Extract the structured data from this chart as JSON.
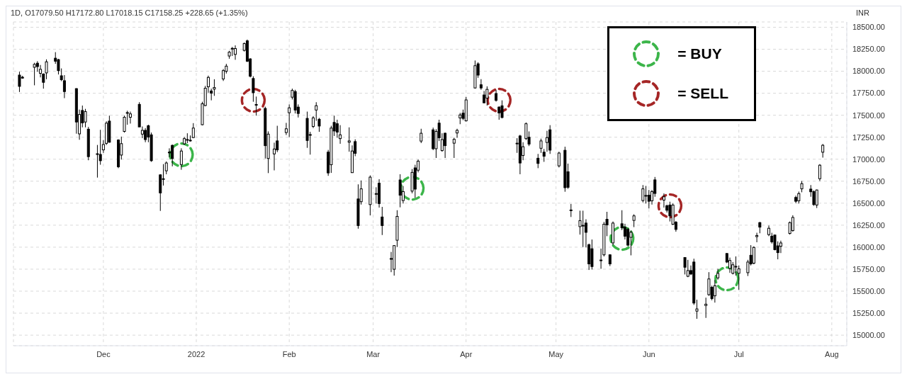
{
  "chart_data": {
    "type": "candlestick",
    "title": "1D, O17079.50 H17172.80 L17018.15 C17158.25 +228.65 (+1.35%)",
    "ylabel": "INR",
    "color": "#000000",
    "x": [
      "2021-11-03",
      "2021-11-04",
      "2021-11-08",
      "2021-11-09",
      "2021-11-10",
      "2021-11-11",
      "2021-11-12",
      "2021-11-15",
      "2021-11-16",
      "2021-11-17",
      "2021-11-18",
      "2021-11-22",
      "2021-11-23",
      "2021-11-24",
      "2021-11-25",
      "2021-11-26",
      "2021-11-29",
      "2021-11-30",
      "2021-12-01",
      "2021-12-02",
      "2021-12-03",
      "2021-12-06",
      "2021-12-07",
      "2021-12-08",
      "2021-12-09",
      "2021-12-10",
      "2021-12-13",
      "2021-12-14",
      "2021-12-15",
      "2021-12-16",
      "2021-12-17",
      "2021-12-20",
      "2021-12-21",
      "2021-12-22",
      "2021-12-23",
      "2021-12-24",
      "2021-12-27",
      "2021-12-28",
      "2021-12-29",
      "2021-12-30",
      "2021-12-31",
      "2022-01-03",
      "2022-01-04",
      "2022-01-05",
      "2022-01-06",
      "2022-01-07",
      "2022-01-10",
      "2022-01-11",
      "2022-01-12",
      "2022-01-13",
      "2022-01-14",
      "2022-01-17",
      "2022-01-18",
      "2022-01-19",
      "2022-01-20",
      "2022-01-21",
      "2022-01-24",
      "2022-01-25",
      "2022-01-27",
      "2022-01-28",
      "2022-01-31",
      "2022-02-01",
      "2022-02-02",
      "2022-02-03",
      "2022-02-04",
      "2022-02-07",
      "2022-02-08",
      "2022-02-09",
      "2022-02-10",
      "2022-02-11",
      "2022-02-14",
      "2022-02-15",
      "2022-02-16",
      "2022-02-17",
      "2022-02-18",
      "2022-02-21",
      "2022-02-22",
      "2022-02-23",
      "2022-02-24",
      "2022-02-25",
      "2022-02-28",
      "2022-03-02",
      "2022-03-03",
      "2022-03-04",
      "2022-03-07",
      "2022-03-08",
      "2022-03-09",
      "2022-03-10",
      "2022-03-11",
      "2022-03-14",
      "2022-03-15",
      "2022-03-16",
      "2022-03-17",
      "2022-03-21",
      "2022-03-22",
      "2022-03-23",
      "2022-03-24",
      "2022-03-25",
      "2022-03-28",
      "2022-03-29",
      "2022-03-30",
      "2022-03-31",
      "2022-04-01",
      "2022-04-04",
      "2022-04-05",
      "2022-04-06",
      "2022-04-07",
      "2022-04-08",
      "2022-04-11",
      "2022-04-12",
      "2022-04-13",
      "2022-04-18",
      "2022-04-19",
      "2022-04-20",
      "2022-04-21",
      "2022-04-22",
      "2022-04-25",
      "2022-04-26",
      "2022-04-27",
      "2022-04-28",
      "2022-04-29",
      "2022-05-02",
      "2022-05-04",
      "2022-05-05",
      "2022-05-06",
      "2022-05-09",
      "2022-05-10",
      "2022-05-11",
      "2022-05-12",
      "2022-05-13",
      "2022-05-16",
      "2022-05-17",
      "2022-05-18",
      "2022-05-19",
      "2022-05-20",
      "2022-05-23",
      "2022-05-24",
      "2022-05-25",
      "2022-05-26",
      "2022-05-27",
      "2022-05-30",
      "2022-05-31",
      "2022-06-01",
      "2022-06-02",
      "2022-06-03",
      "2022-06-06",
      "2022-06-07",
      "2022-06-08",
      "2022-06-09",
      "2022-06-10",
      "2022-06-13",
      "2022-06-14",
      "2022-06-15",
      "2022-06-16",
      "2022-06-17",
      "2022-06-20",
      "2022-06-21",
      "2022-06-22",
      "2022-06-23",
      "2022-06-24",
      "2022-06-27",
      "2022-06-28",
      "2022-06-29",
      "2022-06-30",
      "2022-07-01",
      "2022-07-04",
      "2022-07-05",
      "2022-07-06",
      "2022-07-07",
      "2022-07-08",
      "2022-07-11",
      "2022-07-12",
      "2022-07-13",
      "2022-07-14",
      "2022-07-15",
      "2022-07-18",
      "2022-07-19",
      "2022-07-20",
      "2022-07-21",
      "2022-07-22",
      "2022-07-25",
      "2022-07-26",
      "2022-07-27",
      "2022-07-28",
      "2022-07-29"
    ],
    "ohlc": [
      [
        17956,
        17994,
        17764,
        17828
      ],
      [
        17932,
        17948,
        17915,
        17922
      ],
      [
        18045,
        18096,
        17840,
        18078
      ],
      [
        18091,
        18114,
        17994,
        18053
      ],
      [
        17976,
        18071,
        17930,
        18022
      ],
      [
        17968,
        17976,
        17802,
        17874
      ],
      [
        17981,
        18135,
        17909,
        18107
      ],
      [
        18148,
        18217,
        18084,
        18114
      ],
      [
        18132,
        18140,
        17963,
        18007
      ],
      [
        17948,
        18032,
        17887,
        17904
      ],
      [
        17892,
        17956,
        17694,
        17769
      ],
      [
        17802,
        17807,
        17290,
        17423
      ],
      [
        17288,
        17564,
        17221,
        17508
      ],
      [
        17554,
        17610,
        17362,
        17413
      ],
      [
        17423,
        17572,
        17362,
        17541
      ],
      [
        17341,
        17367,
        16988,
        17029
      ],
      [
        17062,
        17162,
        16791,
        17054
      ],
      [
        17054,
        17334,
        16937,
        16983
      ],
      [
        17106,
        17218,
        17072,
        17167
      ],
      [
        17180,
        17431,
        17162,
        17410
      ],
      [
        17433,
        17495,
        17188,
        17193
      ],
      [
        17218,
        17226,
        16898,
        16914
      ],
      [
        17047,
        17257,
        16996,
        17177
      ],
      [
        17316,
        17495,
        17303,
        17477
      ],
      [
        17528,
        17551,
        17392,
        17530
      ],
      [
        17477,
        17541,
        17405,
        17515
      ],
      [
        17623,
        17648,
        17367,
        17367
      ],
      [
        17285,
        17372,
        17239,
        17328
      ],
      [
        17328,
        17354,
        17193,
        17223
      ],
      [
        17380,
        17392,
        17193,
        17252
      ],
      [
        17277,
        17303,
        16970,
        16983
      ],
      [
        16822,
        16829,
        16412,
        16617
      ],
      [
        16773,
        16944,
        16701,
        16778
      ],
      [
        16868,
        16975,
        16829,
        16957
      ],
      [
        17080,
        17124,
        17021,
        17077
      ],
      [
        17157,
        17167,
        16919,
        17008
      ],
      [
        16939,
        17124,
        16880,
        17093
      ],
      [
        17175,
        17252,
        17162,
        17234
      ],
      [
        17220,
        17295,
        17183,
        17224
      ],
      [
        17213,
        17270,
        17200,
        17216
      ],
      [
        17246,
        17410,
        17239,
        17354
      ],
      [
        17392,
        17653,
        17385,
        17630
      ],
      [
        17610,
        17833,
        17602,
        17807
      ],
      [
        17823,
        17950,
        17756,
        17930
      ],
      [
        17776,
        17802,
        17669,
        17751
      ],
      [
        17797,
        17909,
        17720,
        17815
      ],
      [
        17912,
        18025,
        17889,
        18007
      ],
      [
        17999,
        18084,
        17974,
        18058
      ],
      [
        18173,
        18232,
        18142,
        18217
      ],
      [
        18256,
        18276,
        18173,
        18260
      ],
      [
        18191,
        18294,
        18130,
        18258
      ],
      [
        18237,
        18327,
        18224,
        18314
      ],
      [
        18345,
        18360,
        18104,
        18114
      ],
      [
        18140,
        18148,
        17930,
        17943
      ],
      [
        17917,
        17943,
        17653,
        17756
      ],
      [
        17617,
        17712,
        17495,
        17622
      ],
      [
        17577,
        17597,
        17008,
        17154
      ],
      [
        17008,
        17316,
        16842,
        17285
      ],
      [
        17060,
        17188,
        16873,
        17116
      ],
      [
        17208,
        17380,
        17080,
        17106
      ],
      [
        17303,
        17413,
        17275,
        17346
      ],
      [
        17528,
        17623,
        17252,
        17584
      ],
      [
        17705,
        17802,
        17679,
        17782
      ],
      [
        17769,
        17789,
        17520,
        17559
      ],
      [
        17592,
        17623,
        17474,
        17520
      ],
      [
        17464,
        17541,
        17129,
        17213
      ],
      [
        17275,
        17311,
        17052,
        17280
      ],
      [
        17372,
        17490,
        17354,
        17470
      ],
      [
        17559,
        17648,
        17436,
        17608
      ],
      [
        17454,
        17469,
        17311,
        17377
      ],
      [
        17080,
        17106,
        16811,
        16844
      ],
      [
        16937,
        17380,
        16844,
        17354
      ],
      [
        17418,
        17495,
        17264,
        17321
      ],
      [
        17403,
        17449,
        17244,
        17308
      ],
      [
        17234,
        17387,
        17175,
        17277
      ],
      [
        17193,
        17362,
        17085,
        17208
      ],
      [
        16847,
        17157,
        16847,
        17093
      ],
      [
        17200,
        17226,
        17034,
        17067
      ],
      [
        16548,
        16714,
        16210,
        16246
      ],
      [
        16517,
        16758,
        16484,
        16663
      ],
      [
        16484,
        16816,
        16361,
        16796
      ],
      [
        16604,
        16681,
        16496,
        16609
      ],
      [
        16727,
        16773,
        16450,
        16496
      ],
      [
        16343,
        16458,
        16138,
        16246
      ],
      [
        15866,
        15946,
        15716,
        15871
      ],
      [
        15749,
        16023,
        15677,
        16018
      ],
      [
        16079,
        16420,
        16002,
        16350
      ],
      [
        16764,
        16829,
        16453,
        16591
      ],
      [
        16530,
        16696,
        16496,
        16632
      ],
      [
        16637,
        16888,
        16612,
        16850
      ],
      [
        16901,
        16937,
        16560,
        16660
      ],
      [
        16875,
        16996,
        16850,
        16978
      ],
      [
        17206,
        17346,
        17183,
        17295
      ],
      [
        17334,
        17359,
        17103,
        17119
      ],
      [
        17119,
        17341,
        17014,
        17316
      ],
      [
        17410,
        17449,
        17206,
        17244
      ],
      [
        17098,
        17295,
        17085,
        17223
      ],
      [
        17295,
        17303,
        17014,
        17154
      ],
      [
        17182,
        17244,
        17014,
        17226
      ],
      [
        17298,
        17346,
        17244,
        17328
      ],
      [
        17469,
        17526,
        17398,
        17503
      ],
      [
        17523,
        17564,
        17444,
        17464
      ],
      [
        17436,
        17707,
        17428,
        17674
      ],
      [
        17810,
        18122,
        17802,
        18063
      ],
      [
        18084,
        18102,
        17925,
        17956
      ],
      [
        17846,
        17910,
        17789,
        17810
      ],
      [
        17730,
        17776,
        17636,
        17641
      ],
      [
        17694,
        17828,
        17610,
        17794
      ],
      [
        17746,
        17789,
        17654,
        17669
      ],
      [
        17592,
        17602,
        17449,
        17526
      ],
      [
        17607,
        17669,
        17464,
        17474
      ],
      [
        17180,
        17239,
        17072,
        17182
      ],
      [
        17264,
        17277,
        16829,
        16957
      ],
      [
        17042,
        17193,
        16988,
        17142
      ],
      [
        17234,
        17418,
        17218,
        17403
      ],
      [
        17249,
        17316,
        17149,
        17172
      ],
      [
        17011,
        17060,
        16898,
        16952
      ],
      [
        17124,
        17234,
        17072,
        17208
      ],
      [
        17080,
        17116,
        16970,
        17034
      ],
      [
        17190,
        17323,
        17085,
        17246
      ],
      [
        17334,
        17387,
        17060,
        17103
      ],
      [
        16924,
        17085,
        16906,
        17070
      ],
      [
        17101,
        17142,
        16630,
        16676
      ],
      [
        16857,
        16950,
        16663,
        16681
      ],
      [
        16420,
        16491,
        16343,
        16423
      ],
      [
        16233,
        16415,
        16143,
        16302
      ],
      [
        16246,
        16415,
        16002,
        16248
      ],
      [
        16274,
        16317,
        15997,
        16169
      ],
      [
        16028,
        16041,
        15741,
        15810
      ],
      [
        15982,
        16087,
        15746,
        15780
      ],
      [
        15851,
        15984,
        15754,
        15854
      ],
      [
        15913,
        16287,
        15895,
        16261
      ],
      [
        16317,
        16402,
        16125,
        16253
      ],
      [
        15913,
        15920,
        15785,
        15810
      ],
      [
        16048,
        16292,
        16023,
        16274
      ],
      [
        16266,
        16420,
        16194,
        16220
      ],
      [
        16228,
        16266,
        16087,
        16125
      ],
      [
        16202,
        16220,
        16010,
        16023
      ],
      [
        16112,
        16189,
        15907,
        16169
      ],
      [
        16304,
        16374,
        16228,
        16356
      ],
      [
        16530,
        16706,
        16509,
        16663
      ],
      [
        16583,
        16696,
        16496,
        16588
      ],
      [
        16591,
        16650,
        16440,
        16522
      ],
      [
        16527,
        16650,
        16484,
        16632
      ],
      [
        16765,
        16798,
        16573,
        16611
      ],
      [
        16535,
        16611,
        16450,
        16573
      ],
      [
        16471,
        16484,
        16394,
        16420
      ],
      [
        16479,
        16517,
        16292,
        16356
      ],
      [
        16261,
        16497,
        16253,
        16479
      ],
      [
        16284,
        16297,
        16176,
        16202
      ],
      [
        15882,
        15887,
        15690,
        15772
      ],
      [
        15669,
        15856,
        15659,
        15734
      ],
      [
        15734,
        15792,
        15682,
        15695
      ],
      [
        15831,
        15869,
        15344,
        15365
      ],
      [
        15273,
        15403,
        15186,
        15298
      ],
      [
        15337,
        15426,
        15196,
        15352
      ],
      [
        15460,
        15716,
        15447,
        15639
      ],
      [
        15544,
        15562,
        15396,
        15416
      ],
      [
        15447,
        15626,
        15370,
        15562
      ],
      [
        15651,
        15754,
        15631,
        15702
      ],
      [
        15928,
        15933,
        15818,
        15831
      ],
      [
        15759,
        15882,
        15708,
        15849
      ],
      [
        15703,
        15831,
        15690,
        15800
      ],
      [
        15780,
        15895,
        15677,
        15782
      ],
      [
        15703,
        15792,
        15516,
        15754
      ],
      [
        15710,
        15856,
        15672,
        15831
      ],
      [
        15908,
        16023,
        15792,
        15810
      ],
      [
        15818,
        16010,
        15805,
        15997
      ],
      [
        16120,
        16164,
        16056,
        16133
      ],
      [
        16279,
        16287,
        16158,
        16228
      ],
      [
        16143,
        16246,
        16125,
        16215
      ],
      [
        16125,
        16164,
        16041,
        16061
      ],
      [
        16138,
        16143,
        15964,
        15972
      ],
      [
        16015,
        16066,
        15862,
        15938
      ],
      [
        16010,
        16074,
        15933,
        16048
      ],
      [
        16156,
        16292,
        16143,
        16279
      ],
      [
        16189,
        16363,
        16176,
        16338
      ],
      [
        16565,
        16586,
        16501,
        16522
      ],
      [
        16527,
        16632,
        16496,
        16609
      ],
      [
        16663,
        16752,
        16624,
        16722
      ],
      [
        16660,
        16706,
        16573,
        16630
      ],
      [
        16632,
        16645,
        16471,
        16484
      ],
      [
        16479,
        16655,
        16445,
        16650
      ],
      [
        16778,
        16944,
        16752,
        16932
      ],
      [
        17079.5,
        17172.8,
        17018.15,
        17158.25
      ]
    ],
    "series": [
      {
        "name": "= BUY",
        "type": "scatter",
        "color": "#3cb54a",
        "marker": "circle",
        "line_style": "dashed",
        "x": [
          "2021-12-27",
          "2022-03-14",
          "2022-05-23",
          "2022-06-27"
        ],
        "values": [
          17050,
          16670,
          16100,
          15640
        ]
      },
      {
        "name": "= SELL",
        "type": "scatter",
        "color": "#a52626",
        "marker": "circle",
        "line_style": "dashed",
        "x": [
          "2022-01-20",
          "2022-04-12",
          "2022-06-08"
        ],
        "values": [
          17670,
          17670,
          16470
        ]
      }
    ],
    "xticks": [
      {
        "value": "2021-12-01",
        "label": "Dec"
      },
      {
        "value": "2022-01-01",
        "label": "2022"
      },
      {
        "value": "2022-02-01",
        "label": "Feb"
      },
      {
        "value": "2022-03-01",
        "label": "Mar"
      },
      {
        "value": "2022-04-01",
        "label": "Apr"
      },
      {
        "value": "2022-05-01",
        "label": "May"
      },
      {
        "value": "2022-06-01",
        "label": "Jun"
      },
      {
        "value": "2022-07-01",
        "label": "Jul"
      },
      {
        "value": "2022-08-01",
        "label": "Aug"
      }
    ],
    "xlim": [
      "2021-11-01",
      "2022-08-06"
    ],
    "ylim": [
      14880,
      18560
    ],
    "yticks": [
      {
        "value": 15000,
        "label": "15000.00"
      },
      {
        "value": 15250,
        "label": "15250.00"
      },
      {
        "value": 15500,
        "label": "15500.00"
      },
      {
        "value": 15750,
        "label": "15750.00"
      },
      {
        "value": 16000,
        "label": "16000.00"
      },
      {
        "value": 16250,
        "label": "16250.00"
      },
      {
        "value": 16500,
        "label": "16500.00"
      },
      {
        "value": 16750,
        "label": "16750.00"
      },
      {
        "value": 17000,
        "label": "17000.00"
      },
      {
        "value": 17250,
        "label": "17250.00"
      },
      {
        "value": 17500,
        "label": "17500.00"
      },
      {
        "value": 17750,
        "label": "17750.00"
      },
      {
        "value": 18000,
        "label": "18000.00"
      },
      {
        "value": 18250,
        "label": "18250.00"
      },
      {
        "value": 18500,
        "label": "18500.00"
      }
    ],
    "grid": true,
    "legend": "top right"
  }
}
